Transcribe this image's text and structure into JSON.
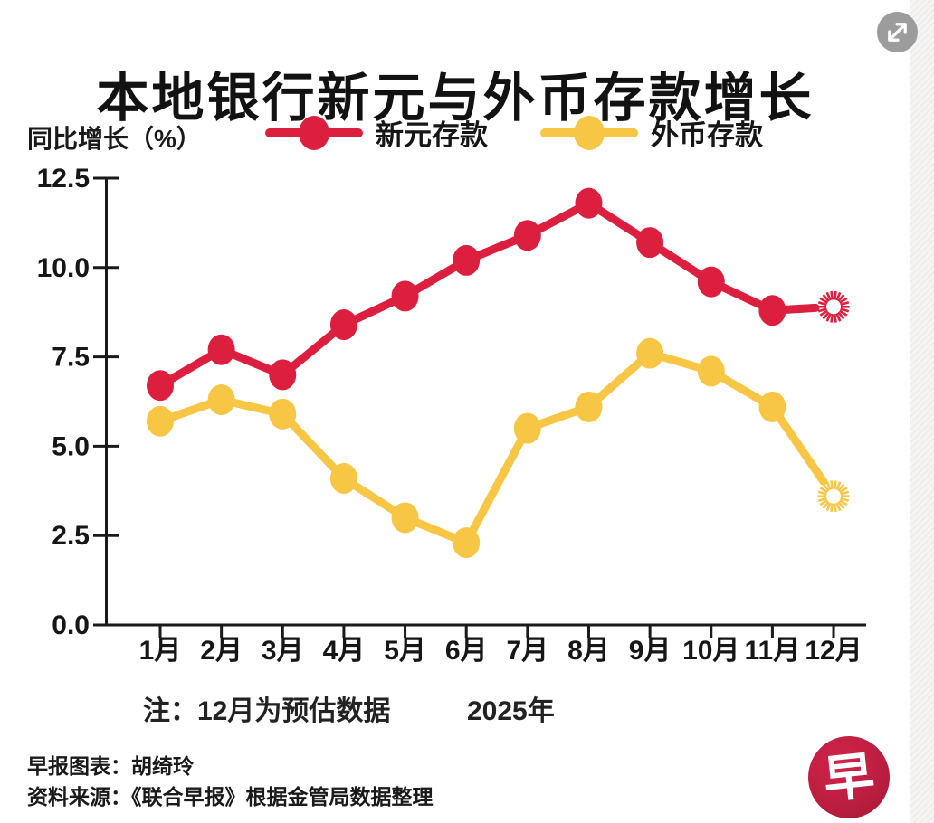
{
  "chart_data": {
    "type": "line",
    "title": "本地银行新元与外币存款增长",
    "ylabel": "同比增长（%）",
    "categories": [
      "1月",
      "2月",
      "3月",
      "4月",
      "5月",
      "6月",
      "7月",
      "8月",
      "9月",
      "10月",
      "11月",
      "12月"
    ],
    "series": [
      {
        "id": "sgd-deposits",
        "name": "新元存款",
        "color": "#dc1f3e",
        "values": [
          6.7,
          7.7,
          7.0,
          8.4,
          9.2,
          10.2,
          10.9,
          11.8,
          10.7,
          9.6,
          8.8,
          8.9
        ],
        "last_point_style": "burst-estimated"
      },
      {
        "id": "foreign-currency-deposits",
        "name": "外币存款",
        "color": "#f7c645",
        "values": [
          5.7,
          6.3,
          5.9,
          4.1,
          3.0,
          2.3,
          5.5,
          6.1,
          7.6,
          7.1,
          6.1,
          3.6
        ],
        "last_point_style": "burst-estimated"
      }
    ],
    "ylim": [
      0,
      12.5
    ],
    "yticks": [
      0,
      2.5,
      5,
      7.5,
      10,
      12.5
    ],
    "ytick_labels": [
      "0.0",
      "2.5",
      "5.0",
      "7.5",
      "10.0",
      "12.5"
    ],
    "grid": false,
    "legend_position": "top",
    "note": "注：12月为预估数据",
    "x_axis_year": "2025年",
    "axis_color": "#1a1a1a"
  },
  "controls": {
    "expand_icon": "expand-arrows-diagonal",
    "expand_button_color": "#9c9c9c"
  },
  "footer": {
    "credit": "早报图表：胡绮玲",
    "source": "资料来源：《联合早报》根据金管局数据整理",
    "logo_char": "早",
    "logo_color": "#bc1e41"
  }
}
